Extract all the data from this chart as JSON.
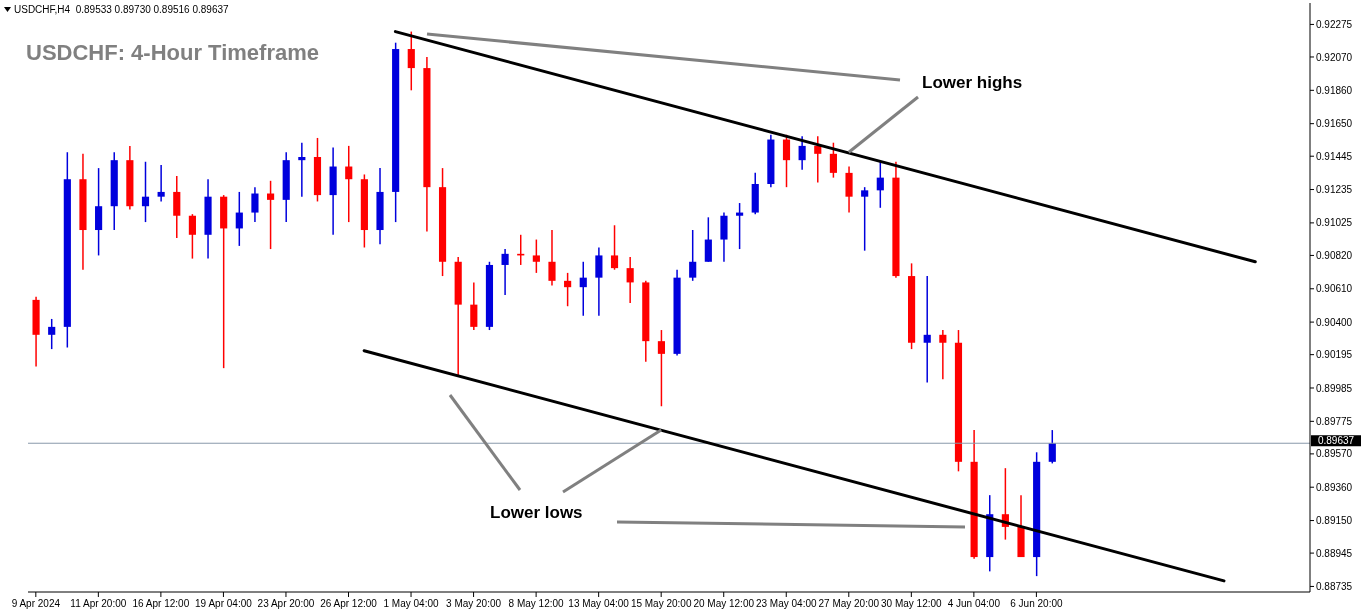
{
  "chart_data": {
    "type": "candlestick",
    "title": "USDCHF: 4-Hour Timeframe",
    "subtitle": "USDCHF,H4  0.89533 0.89730 0.89516 0.89637",
    "annotations": [
      {
        "text": "Lower highs",
        "x": "27 May 20:00",
        "y": 0.9147
      },
      {
        "text": "Lower lows",
        "x": "15 May 20:00",
        "y": 0.8972
      }
    ],
    "categories": [
      "9 Apr 2024",
      null,
      null,
      null,
      "11 Apr 20:00",
      null,
      null,
      null,
      "16 Apr 12:00",
      null,
      null,
      null,
      "19 Apr 04:00",
      null,
      null,
      null,
      "23 Apr 20:00",
      null,
      null,
      null,
      "26 Apr 12:00",
      null,
      null,
      null,
      "1 May 04:00",
      null,
      null,
      null,
      "3 May 20:00",
      null,
      null,
      null,
      "8 May 12:00",
      null,
      null,
      null,
      "13 May 04:00",
      null,
      null,
      null,
      "15 May 20:00",
      null,
      null,
      null,
      "20 May 12:00",
      null,
      null,
      null,
      "23 May 04:00",
      null,
      null,
      null,
      "27 May 20:00",
      null,
      null,
      null,
      "30 May 12:00",
      null,
      null,
      null,
      "4 Jun 04:00",
      null,
      null,
      null,
      "6 Jun 20:00",
      null,
      null,
      null,
      null,
      null,
      null,
      null,
      null,
      null,
      null,
      null,
      null,
      null,
      null,
      null,
      null,
      null
    ],
    "ohlc": [
      [
        0.9054,
        0.9056,
        0.9012,
        0.9032
      ],
      [
        0.9032,
        0.9042,
        0.9023,
        0.9037
      ],
      [
        0.9037,
        0.9147,
        0.9024,
        0.913
      ],
      [
        0.913,
        0.9146,
        0.9073,
        0.9098
      ],
      [
        0.9098,
        0.9137,
        0.9082,
        0.9113
      ],
      [
        0.9113,
        0.9147,
        0.9098,
        0.9142
      ],
      [
        0.9142,
        0.9151,
        0.9111,
        0.9113
      ],
      [
        0.9113,
        0.9141,
        0.9103,
        0.9119
      ],
      [
        0.9119,
        0.9139,
        0.9116,
        0.9122
      ],
      [
        0.9122,
        0.9132,
        0.9093,
        0.9107
      ],
      [
        0.9107,
        0.9108,
        0.908,
        0.9095
      ],
      [
        0.9095,
        0.913,
        0.908,
        0.9119
      ],
      [
        0.9119,
        0.912,
        0.9011,
        0.9099
      ],
      [
        0.9099,
        0.9122,
        0.9088,
        0.9109
      ],
      [
        0.9109,
        0.9125,
        0.9103,
        0.9121
      ],
      [
        0.9121,
        0.9129,
        0.9086,
        0.9117
      ],
      [
        0.9117,
        0.9147,
        0.9103,
        0.9142
      ],
      [
        0.9142,
        0.9153,
        0.9119,
        0.9144
      ],
      [
        0.9144,
        0.9156,
        0.9116,
        0.912
      ],
      [
        0.912,
        0.915,
        0.9095,
        0.9138
      ],
      [
        0.9138,
        0.9151,
        0.9103,
        0.913
      ],
      [
        0.913,
        0.9133,
        0.9087,
        0.9098
      ],
      [
        0.9098,
        0.9137,
        0.9089,
        0.9122
      ],
      [
        0.9122,
        0.9216,
        0.9103,
        0.9212
      ],
      [
        0.9212,
        0.9223,
        0.9186,
        0.92
      ],
      [
        0.92,
        0.9207,
        0.9097,
        0.9125
      ],
      [
        0.9125,
        0.9137,
        0.9069,
        0.9078
      ],
      [
        0.9078,
        0.9081,
        0.9006,
        0.9051
      ],
      [
        0.9051,
        0.9065,
        0.9035,
        0.9037
      ],
      [
        0.9037,
        0.9078,
        0.9035,
        0.9076
      ],
      [
        0.9076,
        0.9086,
        0.9057,
        0.9083
      ],
      [
        0.9083,
        0.9095,
        0.9076,
        0.9082
      ],
      [
        0.9082,
        0.9092,
        0.9071,
        0.9078
      ],
      [
        0.9078,
        0.9098,
        0.9063,
        0.9066
      ],
      [
        0.9066,
        0.9071,
        0.905,
        0.9062
      ],
      [
        0.9062,
        0.9078,
        0.9044,
        0.9068
      ],
      [
        0.9068,
        0.9087,
        0.9044,
        0.9082
      ],
      [
        0.9082,
        0.9101,
        0.9073,
        0.9074
      ],
      [
        0.9074,
        0.9081,
        0.9052,
        0.9065
      ],
      [
        0.9065,
        0.9066,
        0.9015,
        0.9028
      ],
      [
        0.9028,
        0.9035,
        0.8987,
        0.902
      ],
      [
        0.902,
        0.9073,
        0.9019,
        0.9068
      ],
      [
        0.9068,
        0.9098,
        0.9066,
        0.9078
      ],
      [
        0.9078,
        0.9106,
        0.9078,
        0.9092
      ],
      [
        0.9092,
        0.9109,
        0.9078,
        0.9107
      ],
      [
        0.9107,
        0.9115,
        0.9086,
        0.9109
      ],
      [
        0.9109,
        0.9134,
        0.9108,
        0.9127
      ],
      [
        0.9127,
        0.9158,
        0.9125,
        0.9155
      ],
      [
        0.9155,
        0.9158,
        0.9125,
        0.9142
      ],
      [
        0.9142,
        0.9157,
        0.9136,
        0.9151
      ],
      [
        0.9151,
        0.9157,
        0.9128,
        0.9146
      ],
      [
        0.9146,
        0.9153,
        0.9131,
        0.9134
      ],
      [
        0.9134,
        0.9138,
        0.9109,
        0.9119
      ],
      [
        0.9119,
        0.9125,
        0.9085,
        0.9123
      ],
      [
        0.9123,
        0.9141,
        0.9112,
        0.9131
      ],
      [
        0.9131,
        0.9141,
        0.9068,
        0.9069
      ],
      [
        0.9069,
        0.9077,
        0.9023,
        0.9027
      ],
      [
        0.9027,
        0.9069,
        0.9002,
        0.9032
      ],
      [
        0.9032,
        0.9035,
        0.9004,
        0.9027
      ],
      [
        0.9027,
        0.9035,
        0.8946,
        0.8952
      ],
      [
        0.8952,
        0.8972,
        0.8891,
        0.8892
      ],
      [
        0.8892,
        0.8931,
        0.8883,
        0.8919
      ],
      [
        0.8919,
        0.8948,
        0.8903,
        0.8911
      ],
      [
        0.8911,
        0.8931,
        0.8892,
        0.8892
      ],
      [
        0.8892,
        0.8958,
        0.888,
        0.8952
      ],
      [
        0.8952,
        0.8972,
        0.8951,
        0.89637
      ],
      null,
      null,
      null,
      null,
      null,
      null,
      null,
      null,
      null,
      null,
      null,
      null,
      null,
      null,
      null,
      null
    ],
    "colors": [
      "#ff0000",
      "#0000dd",
      "#0000dd",
      "#ff0000",
      "#0000dd",
      "#0000dd",
      "#ff0000",
      "#0000dd",
      "#0000dd",
      "#ff0000",
      "#ff0000",
      "#0000dd",
      "#ff0000",
      "#0000dd",
      "#0000dd",
      "#ff0000",
      "#0000dd",
      "#0000dd",
      "#ff0000",
      "#0000dd",
      "#ff0000",
      "#ff0000",
      "#0000dd",
      "#0000dd",
      "#ff0000",
      "#ff0000",
      "#ff0000",
      "#ff0000",
      "#ff0000",
      "#0000dd",
      "#0000dd",
      "#ff0000",
      "#ff0000",
      "#ff0000",
      "#ff0000",
      "#0000dd",
      "#0000dd",
      "#ff0000",
      "#ff0000",
      "#ff0000",
      "#ff0000",
      "#0000dd",
      "#0000dd",
      "#0000dd",
      "#0000dd",
      "#0000dd",
      "#0000dd",
      "#0000dd",
      "#ff0000",
      "#0000dd",
      "#ff0000",
      "#ff0000",
      "#ff0000",
      "#0000dd",
      "#0000dd",
      "#ff0000",
      "#ff0000",
      "#0000dd",
      "#ff0000",
      "#ff0000",
      "#ff0000",
      "#0000dd",
      "#ff0000",
      "#ff0000",
      "#0000dd",
      "#0000dd",
      null,
      null,
      null,
      null,
      null,
      null,
      null,
      null,
      null,
      null,
      null,
      null,
      null,
      null,
      null,
      null
    ],
    "series": [
      {
        "type": "line",
        "color": "#000000",
        "values": [
          null,
          null,
          null,
          null,
          null,
          null,
          null,
          null,
          null,
          null,
          null,
          null,
          null,
          null,
          null,
          null,
          null,
          null,
          null,
          null,
          null,
          null,
          null,
          0.9223,
          null,
          null,
          null,
          null,
          null,
          null,
          null,
          null,
          null,
          null,
          null,
          null,
          null,
          null,
          null,
          null,
          null,
          null,
          null,
          null,
          null,
          null,
          null,
          null,
          null,
          null,
          null,
          null,
          null,
          null,
          null,
          null,
          null,
          null,
          null,
          null,
          null,
          null,
          null,
          null,
          null,
          null,
          null,
          null,
          null,
          null,
          null,
          null,
          null,
          null,
          null,
          null,
          null,
          null,
          0.9078,
          null,
          null,
          null
        ]
      },
      {
        "type": "line",
        "color": "#000000",
        "values": [
          null,
          null,
          null,
          null,
          null,
          null,
          null,
          null,
          null,
          null,
          null,
          null,
          null,
          null,
          null,
          null,
          null,
          null,
          null,
          null,
          null,
          0.9022,
          null,
          null,
          null,
          null,
          null,
          null,
          null,
          null,
          null,
          null,
          null,
          null,
          null,
          null,
          null,
          null,
          null,
          null,
          null,
          null,
          null,
          null,
          null,
          null,
          null,
          null,
          null,
          null,
          null,
          null,
          null,
          null,
          null,
          null,
          null,
          null,
          null,
          null,
          null,
          null,
          null,
          null,
          null,
          null,
          null,
          null,
          null,
          null,
          null,
          null,
          null,
          null,
          null,
          null,
          0.8877,
          null,
          null,
          null,
          null,
          null
        ]
      }
    ],
    "ylim": [
      0.887,
      0.9241
    ],
    "yticks": [
      0.92275,
      {
        "value": 0.9207,
        "label": "0.92070"
      },
      {
        "value": 0.9186,
        "label": "0.91860"
      },
      {
        "value": 0.9165,
        "label": "0.91650"
      },
      0.91445,
      0.91235,
      0.91025,
      {
        "value": 0.9082,
        "label": "0.90820"
      },
      {
        "value": 0.9061,
        "label": "0.90610"
      },
      {
        "value": 0.904,
        "label": "0.90400"
      },
      0.90195,
      0.89985,
      0.89775,
      {
        "value": 0.8957,
        "label": "0.89570"
      },
      {
        "value": 0.8936,
        "label": "0.89360"
      },
      {
        "value": 0.8915,
        "label": "0.89150"
      },
      0.88945,
      0.88735
    ],
    "ref_lines": [
      {
        "axis": "y",
        "value": 0.89637,
        "label": "0.89637",
        "color": "#8899aa"
      }
    ]
  }
}
